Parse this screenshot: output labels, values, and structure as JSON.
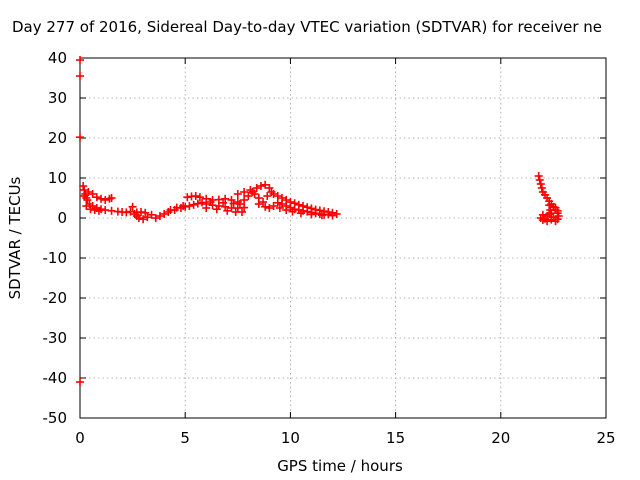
{
  "chart_data": {
    "type": "scatter",
    "title": "Day 277 of 2016, Sidereal Day-to-day VTEC variation (SDTVAR) for receiver ne",
    "xlabel": "GPS time / hours",
    "ylabel": "SDTVAR / TECUs",
    "xlim": [
      0,
      25
    ],
    "ylim": [
      -50,
      40
    ],
    "xticks": [
      0,
      5,
      10,
      15,
      20,
      25
    ],
    "yticks": [
      -50,
      -40,
      -30,
      -20,
      -10,
      0,
      10,
      20,
      30,
      40
    ],
    "grid": true,
    "marker": "plus",
    "colors": {
      "series": "#ff0000",
      "grid": "#a0a0a0",
      "axis": "#000000"
    },
    "series": [
      {
        "name": "SDTVAR",
        "points": [
          [
            0.0,
            39.5
          ],
          [
            0.0,
            35.5
          ],
          [
            0.0,
            20.2
          ],
          [
            0.0,
            -41.0
          ],
          [
            0.15,
            8.0
          ],
          [
            0.2,
            7.0
          ],
          [
            0.25,
            6.0
          ],
          [
            0.3,
            5.0
          ],
          [
            0.35,
            4.5
          ],
          [
            0.45,
            3.5
          ],
          [
            0.6,
            3.0
          ],
          [
            0.8,
            2.5
          ],
          [
            1.0,
            2.2
          ],
          [
            1.2,
            2.0
          ],
          [
            1.5,
            1.8
          ],
          [
            1.8,
            1.6
          ],
          [
            0.2,
            5.5
          ],
          [
            0.4,
            6.5
          ],
          [
            0.6,
            6.0
          ],
          [
            0.8,
            5.2
          ],
          [
            1.0,
            4.8
          ],
          [
            1.2,
            4.5
          ],
          [
            1.4,
            4.8
          ],
          [
            1.5,
            5.0
          ],
          [
            0.3,
            3.0
          ],
          [
            0.5,
            2.2
          ],
          [
            0.7,
            2.0
          ],
          [
            0.9,
            1.8
          ],
          [
            2.0,
            1.5
          ],
          [
            2.2,
            1.4
          ],
          [
            2.4,
            1.6
          ],
          [
            2.5,
            2.8
          ],
          [
            2.6,
            1.0
          ],
          [
            2.7,
            0.5
          ],
          [
            2.8,
            0.0
          ],
          [
            3.0,
            -0.3
          ],
          [
            3.2,
            0.2
          ],
          [
            3.4,
            0.8
          ],
          [
            3.6,
            0.0
          ],
          [
            3.8,
            0.5
          ],
          [
            2.7,
            1.4
          ],
          [
            2.9,
            1.5
          ],
          [
            3.1,
            1.3
          ],
          [
            4.0,
            1.0
          ],
          [
            4.2,
            1.5
          ],
          [
            4.5,
            2.0
          ],
          [
            4.8,
            2.5
          ],
          [
            5.0,
            2.8
          ],
          [
            5.2,
            3.0
          ],
          [
            5.4,
            3.3
          ],
          [
            5.6,
            3.6
          ],
          [
            5.8,
            3.9
          ],
          [
            4.3,
            2.0
          ],
          [
            4.6,
            2.6
          ],
          [
            4.9,
            3.0
          ],
          [
            5.1,
            5.2
          ],
          [
            5.3,
            5.4
          ],
          [
            5.5,
            5.5
          ],
          [
            5.7,
            5.2
          ],
          [
            6.0,
            4.8
          ],
          [
            6.3,
            4.5
          ],
          [
            6.6,
            4.6
          ],
          [
            6.9,
            4.8
          ],
          [
            7.2,
            4.5
          ],
          [
            7.5,
            4.0
          ],
          [
            6.0,
            3.5
          ],
          [
            6.3,
            3.2
          ],
          [
            6.6,
            3.0
          ],
          [
            6.9,
            2.8
          ],
          [
            7.2,
            2.5
          ],
          [
            7.5,
            2.5
          ],
          [
            7.8,
            2.6
          ],
          [
            6.0,
            2.5
          ],
          [
            6.5,
            2.2
          ],
          [
            7.0,
            1.8
          ],
          [
            7.4,
            1.5
          ],
          [
            7.7,
            1.5
          ],
          [
            6.2,
            4.0
          ],
          [
            6.8,
            3.8
          ],
          [
            7.3,
            3.6
          ],
          [
            7.6,
            3.5
          ],
          [
            7.8,
            4.5
          ],
          [
            8.0,
            5.5
          ],
          [
            8.2,
            6.5
          ],
          [
            8.4,
            7.5
          ],
          [
            8.6,
            8.0
          ],
          [
            8.8,
            8.3
          ],
          [
            9.0,
            7.5
          ],
          [
            9.1,
            6.5
          ],
          [
            8.9,
            5.5
          ],
          [
            7.5,
            6.0
          ],
          [
            7.8,
            6.5
          ],
          [
            8.1,
            7.0
          ],
          [
            8.3,
            6.0
          ],
          [
            8.5,
            5.0
          ],
          [
            8.7,
            4.0
          ],
          [
            8.5,
            3.5
          ],
          [
            8.8,
            2.8
          ],
          [
            9.0,
            2.5
          ],
          [
            9.2,
            3.0
          ],
          [
            9.2,
            6.0
          ],
          [
            9.4,
            5.5
          ],
          [
            9.6,
            5.0
          ],
          [
            9.8,
            4.5
          ],
          [
            10.0,
            4.0
          ],
          [
            10.2,
            3.7
          ],
          [
            10.4,
            3.3
          ],
          [
            10.6,
            3.0
          ],
          [
            10.8,
            2.7
          ],
          [
            11.0,
            2.4
          ],
          [
            11.2,
            2.1
          ],
          [
            11.4,
            1.9
          ],
          [
            11.6,
            1.7
          ],
          [
            11.8,
            1.5
          ],
          [
            12.0,
            1.3
          ],
          [
            12.2,
            1.0
          ],
          [
            9.4,
            3.8
          ],
          [
            9.6,
            3.5
          ],
          [
            9.8,
            3.0
          ],
          [
            10.0,
            2.6
          ],
          [
            10.2,
            2.2
          ],
          [
            10.4,
            2.0
          ],
          [
            10.6,
            1.8
          ],
          [
            10.8,
            1.6
          ],
          [
            11.0,
            1.4
          ],
          [
            11.2,
            1.2
          ],
          [
            11.4,
            1.0
          ],
          [
            11.6,
            0.8
          ],
          [
            11.8,
            0.9
          ],
          [
            12.0,
            0.6
          ],
          [
            9.5,
            2.5
          ],
          [
            9.8,
            2.0
          ],
          [
            10.1,
            1.6
          ],
          [
            10.5,
            1.2
          ],
          [
            11.0,
            0.9
          ],
          [
            11.5,
            0.7
          ],
          [
            21.8,
            10.5
          ],
          [
            21.85,
            9.5
          ],
          [
            21.9,
            8.5
          ],
          [
            21.95,
            7.5
          ],
          [
            22.0,
            6.5
          ],
          [
            22.1,
            5.8
          ],
          [
            22.2,
            5.0
          ],
          [
            22.3,
            4.2
          ],
          [
            22.4,
            3.5
          ],
          [
            22.5,
            2.8
          ],
          [
            22.6,
            2.0
          ],
          [
            22.7,
            1.2
          ],
          [
            22.75,
            0.5
          ],
          [
            22.7,
            -0.3
          ],
          [
            22.6,
            -0.8
          ],
          [
            21.9,
            0.0
          ],
          [
            22.0,
            -0.5
          ],
          [
            22.1,
            -0.2
          ],
          [
            22.2,
            0.5
          ],
          [
            22.3,
            1.0
          ],
          [
            22.35,
            2.0
          ],
          [
            22.4,
            1.2
          ],
          [
            22.5,
            0.2
          ],
          [
            22.4,
            -0.4
          ],
          [
            22.2,
            -0.8
          ],
          [
            22.0,
            0.8
          ],
          [
            22.3,
            3.2
          ],
          [
            22.6,
            2.6
          ],
          [
            22.7,
            1.8
          ]
        ]
      }
    ]
  }
}
